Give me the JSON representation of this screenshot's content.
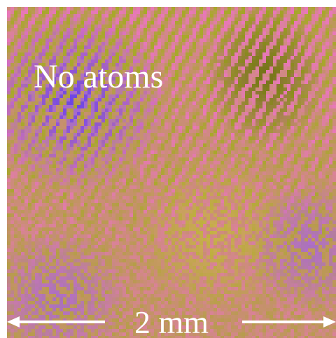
{
  "image": {
    "label": "No atoms",
    "scale_bar_label": "2 mm",
    "colors": {
      "olive": "#a8a82a",
      "dark_olive": "#6e7012",
      "pink": "#e878b8",
      "purple": "#9a64e0",
      "blue": "#5a3ef0",
      "yellow": "#cfc040",
      "text": "#ffffff"
    }
  }
}
